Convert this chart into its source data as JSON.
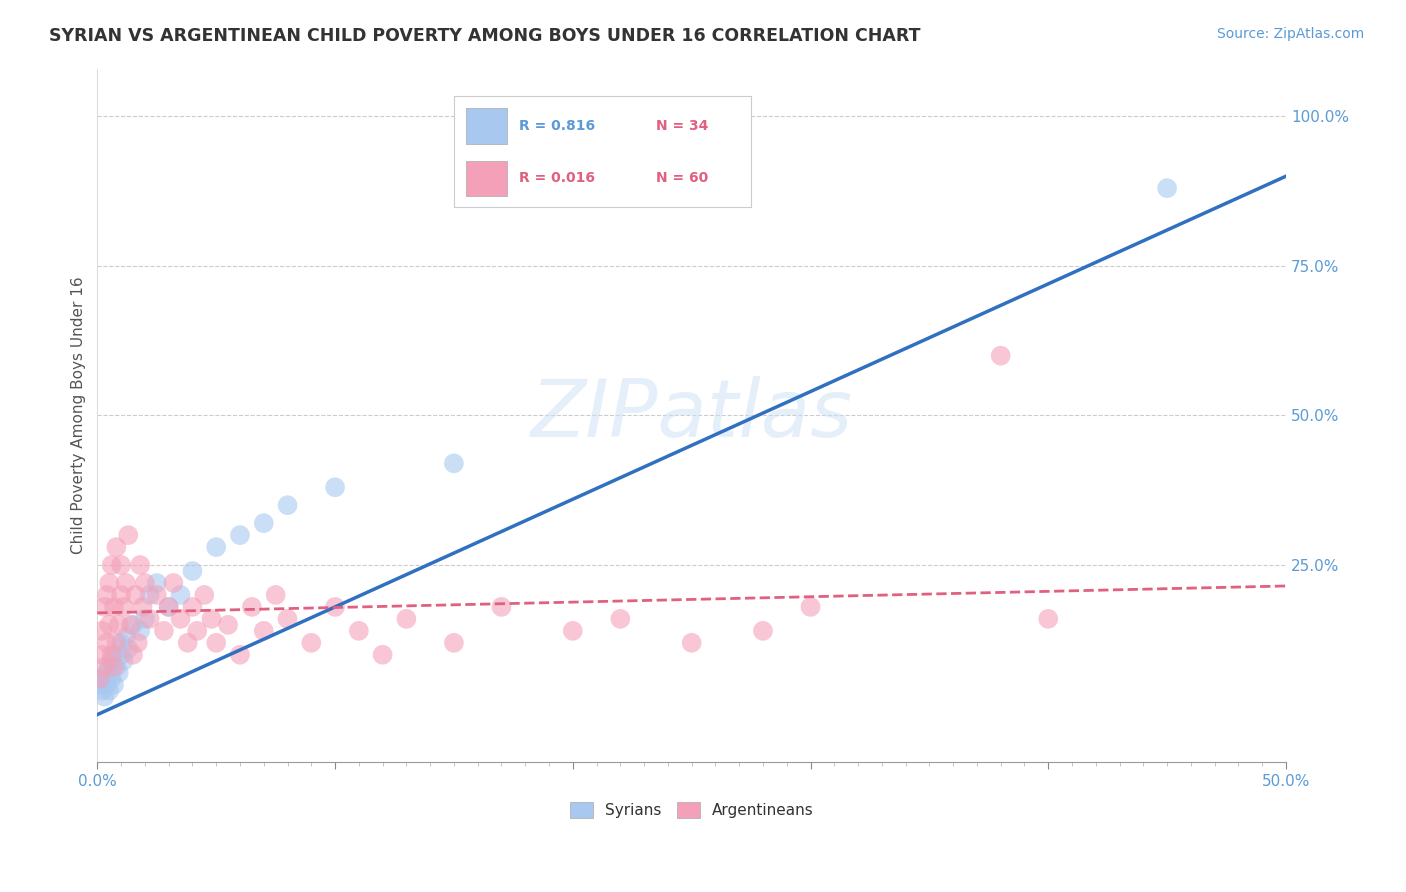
{
  "title": "SYRIAN VS ARGENTINEAN CHILD POVERTY AMONG BOYS UNDER 16 CORRELATION CHART",
  "source": "Source: ZipAtlas.com",
  "ylabel": "Child Poverty Among Boys Under 16",
  "ytick_labels": [
    "100.0%",
    "75.0%",
    "50.0%",
    "25.0%"
  ],
  "ytick_values": [
    1.0,
    0.75,
    0.5,
    0.25
  ],
  "xlim": [
    0,
    0.5
  ],
  "ylim": [
    -0.08,
    1.08
  ],
  "legend_r1": "R = 0.816",
  "legend_n1": "N = 34",
  "legend_r2": "R = 0.016",
  "legend_n2": "N = 60",
  "legend_label1": "Syrians",
  "legend_label2": "Argentineans",
  "syrians_color": "#a8c8f0",
  "argentineans_color": "#f4a0b8",
  "regression_blue_color": "#3070c0",
  "regression_pink_color": "#e06080",
  "watermark_zip": "ZIP",
  "watermark_atlas": "atlas",
  "background_color": "#ffffff",
  "title_color": "#333333",
  "axis_label_color": "#555555",
  "tick_color": "#5b9bd5",
  "blue_line_x0": 0.0,
  "blue_line_y0": 0.0,
  "blue_line_x1": 0.5,
  "blue_line_y1": 0.9,
  "pink_line_x0": 0.0,
  "pink_line_y0": 0.17,
  "pink_line_x1": 0.5,
  "pink_line_y1": 0.215,
  "syrians_x": [
    0.001,
    0.002,
    0.003,
    0.003,
    0.004,
    0.004,
    0.005,
    0.005,
    0.006,
    0.006,
    0.007,
    0.007,
    0.008,
    0.009,
    0.01,
    0.01,
    0.011,
    0.012,
    0.013,
    0.015,
    0.018,
    0.02,
    0.022,
    0.025,
    0.03,
    0.035,
    0.04,
    0.05,
    0.06,
    0.07,
    0.08,
    0.1,
    0.15,
    0.45
  ],
  "syrians_y": [
    0.05,
    0.04,
    0.06,
    0.03,
    0.07,
    0.05,
    0.08,
    0.04,
    0.09,
    0.06,
    0.05,
    0.1,
    0.08,
    0.07,
    0.12,
    0.1,
    0.09,
    0.13,
    0.11,
    0.15,
    0.14,
    0.16,
    0.2,
    0.22,
    0.18,
    0.2,
    0.24,
    0.28,
    0.3,
    0.32,
    0.35,
    0.38,
    0.42,
    0.88
  ],
  "argentineans_x": [
    0.001,
    0.002,
    0.002,
    0.003,
    0.003,
    0.004,
    0.004,
    0.005,
    0.005,
    0.006,
    0.006,
    0.007,
    0.007,
    0.008,
    0.008,
    0.009,
    0.01,
    0.01,
    0.011,
    0.012,
    0.013,
    0.014,
    0.015,
    0.016,
    0.017,
    0.018,
    0.019,
    0.02,
    0.022,
    0.025,
    0.028,
    0.03,
    0.032,
    0.035,
    0.038,
    0.04,
    0.042,
    0.045,
    0.048,
    0.05,
    0.055,
    0.06,
    0.065,
    0.07,
    0.075,
    0.08,
    0.09,
    0.1,
    0.11,
    0.12,
    0.13,
    0.15,
    0.17,
    0.2,
    0.22,
    0.25,
    0.28,
    0.3,
    0.38,
    0.4
  ],
  "argentineans_y": [
    0.06,
    0.1,
    0.14,
    0.08,
    0.18,
    0.12,
    0.2,
    0.15,
    0.22,
    0.1,
    0.25,
    0.08,
    0.18,
    0.12,
    0.28,
    0.15,
    0.2,
    0.25,
    0.18,
    0.22,
    0.3,
    0.15,
    0.1,
    0.2,
    0.12,
    0.25,
    0.18,
    0.22,
    0.16,
    0.2,
    0.14,
    0.18,
    0.22,
    0.16,
    0.12,
    0.18,
    0.14,
    0.2,
    0.16,
    0.12,
    0.15,
    0.1,
    0.18,
    0.14,
    0.2,
    0.16,
    0.12,
    0.18,
    0.14,
    0.1,
    0.16,
    0.12,
    0.18,
    0.14,
    0.16,
    0.12,
    0.14,
    0.18,
    0.6,
    0.16
  ]
}
